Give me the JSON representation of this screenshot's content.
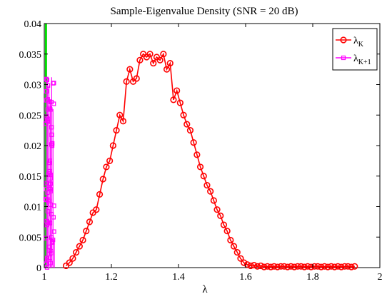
{
  "chart_data": {
    "type": "line",
    "title": "Sample-Eigenvalue Density (SNR = 20 dB)",
    "xlabel": "λ",
    "ylabel": "",
    "xlim": [
      1,
      2
    ],
    "ylim": [
      0,
      0.04
    ],
    "xticks": [
      1,
      1.2,
      1.4,
      1.6,
      1.8,
      2
    ],
    "xtick_labels": [
      "1",
      "1.2",
      "1.4",
      "1.6",
      "1.8",
      "2"
    ],
    "yticks": [
      0,
      0.005,
      0.01,
      0.015,
      0.02,
      0.025,
      0.03,
      0.035,
      0.04
    ],
    "ytick_labels": [
      "0",
      "0.005",
      "0.01",
      "0.015",
      "0.02",
      "0.025",
      "0.03",
      "0.035",
      "0.04"
    ],
    "grid": false,
    "legend_position": "top-right",
    "series": [
      {
        "name_main": "λ",
        "name_sub": "K",
        "color": "#ff0000",
        "marker": "circle",
        "x": [
          1.065,
          1.075,
          1.085,
          1.095,
          1.105,
          1.115,
          1.125,
          1.135,
          1.145,
          1.155,
          1.165,
          1.175,
          1.185,
          1.195,
          1.205,
          1.215,
          1.225,
          1.235,
          1.245,
          1.255,
          1.265,
          1.275,
          1.285,
          1.295,
          1.305,
          1.315,
          1.325,
          1.335,
          1.345,
          1.355,
          1.365,
          1.375,
          1.385,
          1.395,
          1.405,
          1.415,
          1.425,
          1.435,
          1.445,
          1.455,
          1.465,
          1.475,
          1.485,
          1.495,
          1.505,
          1.515,
          1.525,
          1.535,
          1.545,
          1.555,
          1.565,
          1.575,
          1.585,
          1.595,
          1.605,
          1.615,
          1.625,
          1.635,
          1.645,
          1.655,
          1.665,
          1.675,
          1.685,
          1.695,
          1.705,
          1.715,
          1.725,
          1.735,
          1.745,
          1.755,
          1.765,
          1.775,
          1.785,
          1.795,
          1.805,
          1.815,
          1.825,
          1.835,
          1.845,
          1.855,
          1.865,
          1.875,
          1.885,
          1.895,
          1.905,
          1.915,
          1.925
        ],
        "y": [
          0.0003,
          0.0008,
          0.0015,
          0.0025,
          0.0035,
          0.0045,
          0.006,
          0.0075,
          0.009,
          0.0095,
          0.012,
          0.0145,
          0.0165,
          0.0175,
          0.02,
          0.0225,
          0.025,
          0.024,
          0.0305,
          0.0325,
          0.0305,
          0.031,
          0.034,
          0.035,
          0.0345,
          0.035,
          0.0335,
          0.0345,
          0.034,
          0.035,
          0.0325,
          0.0335,
          0.0275,
          0.029,
          0.027,
          0.025,
          0.0235,
          0.0225,
          0.0205,
          0.0185,
          0.0165,
          0.015,
          0.0135,
          0.0125,
          0.011,
          0.0095,
          0.0085,
          0.007,
          0.006,
          0.0045,
          0.0035,
          0.0025,
          0.0015,
          0.0008,
          0.0005,
          0.0003,
          0.0004,
          0.0002,
          0.0003,
          0.0001,
          0.0002,
          0.0001,
          0.0002,
          0.0001,
          0.0002,
          0.0002,
          0.0001,
          0.0002,
          0.0001,
          0.0002,
          0.0002,
          0.0001,
          0.0002,
          0.0001,
          0.0002,
          0.0002,
          0.0001,
          0.0002,
          0.0001,
          0.0002,
          0.0001,
          0.0002,
          0.0001,
          0.0002,
          0.0002,
          0.0001,
          0.0002
        ]
      },
      {
        "name_main": "λ",
        "name_sub": "K+1",
        "color": "#ff00ff",
        "marker": "square",
        "dense_spike": true,
        "x_range": [
          1.0,
          1.03
        ],
        "peak_y": 0.0312
      }
    ],
    "reference_line": {
      "x": 1.005,
      "color": "#00dd00"
    }
  }
}
